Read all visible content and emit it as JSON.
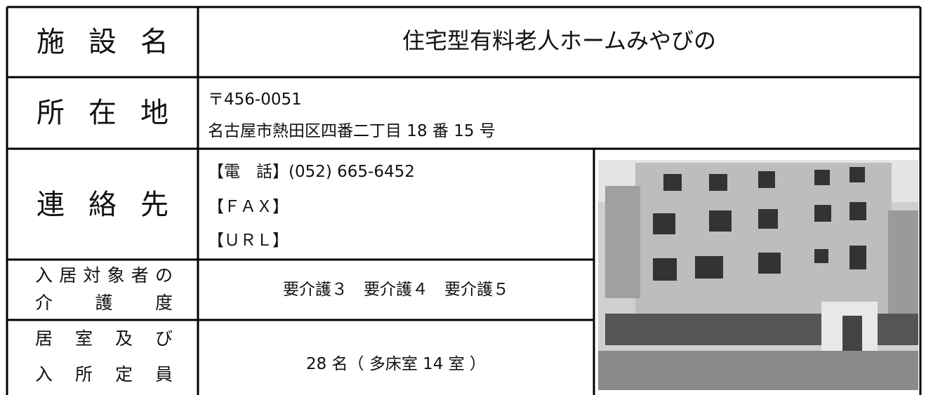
{
  "table": {
    "rows": [
      {
        "label": [
          "施 設 名"
        ],
        "value": [
          "住宅型有料老人ホームみやびの"
        ]
      },
      {
        "label": [
          "所 在 地"
        ],
        "value": [
          "〒456-0051",
          "名古屋市熱田区四番二丁目 18 番 15 号"
        ]
      },
      {
        "label": [
          "連 絡 先"
        ],
        "value": [
          "【電　話】(052) 665-6452",
          "【ＦＡＸ】",
          "【ＵＲＬ】"
        ]
      },
      {
        "label": [
          "入居対象者の",
          "介 護 度"
        ],
        "value": [
          "要介護３　要介護４　要介護５"
        ]
      },
      {
        "label": [
          "居 室 及 び",
          "入 所 定 員"
        ],
        "value": [
          "28 名（ 多床室 14 室 ）"
        ]
      }
    ]
  }
}
